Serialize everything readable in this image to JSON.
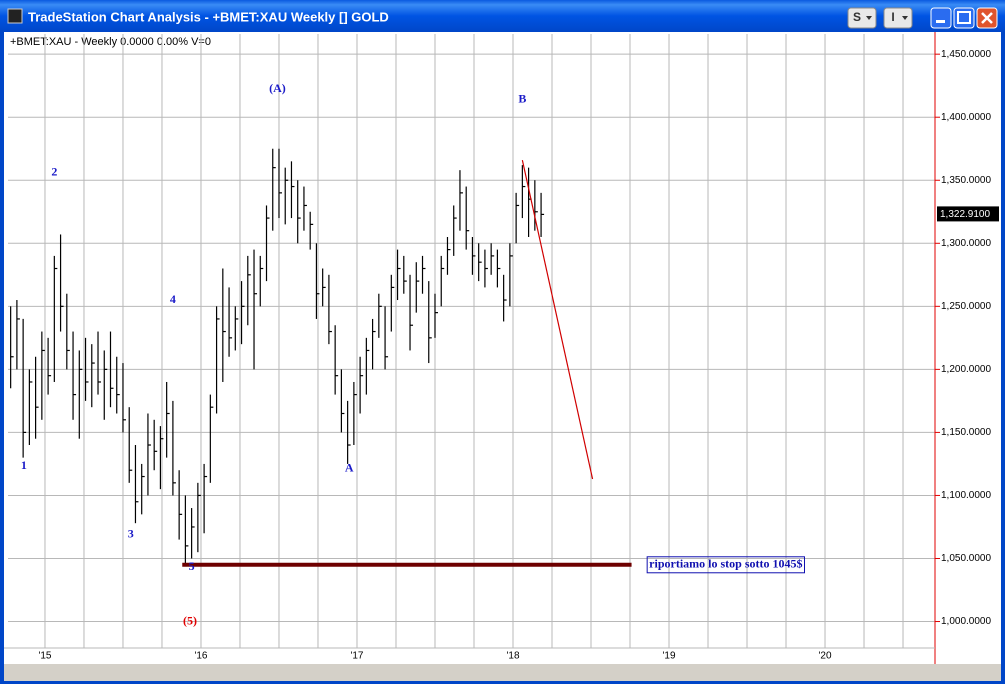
{
  "window": {
    "title": "TradeStation Chart Analysis - +BMET:XAU Weekly [] GOLD",
    "buttons": [
      "S",
      "I"
    ]
  },
  "chart_data": {
    "type": "ohlc",
    "header": "+BMET:XAU - Weekly  0.0000  0.00%  V=0",
    "color": "#000000",
    "grid": true,
    "xlim": [
      2014.763,
      2020.705
    ],
    "xticks": [
      {
        "value": 2015,
        "label": "'15"
      },
      {
        "value": 2016,
        "label": "'16"
      },
      {
        "value": 2017,
        "label": "'17"
      },
      {
        "value": 2018,
        "label": "'18"
      },
      {
        "value": 2019,
        "label": "'19"
      },
      {
        "value": 2020,
        "label": "'20"
      }
    ],
    "xminorticks": [
      2015.25,
      2015.5,
      2015.75,
      2016.25,
      2016.5,
      2016.75,
      2017.25,
      2017.5,
      2017.75,
      2018.25,
      2018.5,
      2018.75,
      2019.25,
      2019.5,
      2019.75,
      2020.25,
      2020.5
    ],
    "ylim": [
      979,
      1466
    ],
    "yticks": [
      {
        "value": 1000,
        "label": "1,000.0000"
      },
      {
        "value": 1050,
        "label": "1,050.0000"
      },
      {
        "value": 1100,
        "label": "1,100.0000"
      },
      {
        "value": 1150,
        "label": "1,150.0000"
      },
      {
        "value": 1200,
        "label": "1,200.0000"
      },
      {
        "value": 1250,
        "label": "1,250.0000"
      },
      {
        "value": 1300,
        "label": "1,300.0000"
      },
      {
        "value": 1350,
        "label": "1,350.0000"
      },
      {
        "value": 1400,
        "label": "1,400.0000"
      },
      {
        "value": 1450,
        "label": "1,450.0000"
      }
    ],
    "last_price": {
      "value": 1322.91,
      "label": "1,322.9100"
    },
    "x": [
      2014.78,
      2014.82,
      2014.86,
      2014.9,
      2014.94,
      2014.98,
      2015.02,
      2015.06,
      2015.1,
      2015.14,
      2015.18,
      2015.22,
      2015.26,
      2015.3,
      2015.34,
      2015.38,
      2015.42,
      2015.46,
      2015.5,
      2015.54,
      2015.58,
      2015.62,
      2015.66,
      2015.7,
      2015.74,
      2015.78,
      2015.82,
      2015.86,
      2015.9,
      2015.94,
      2015.98,
      2016.02,
      2016.06,
      2016.1,
      2016.14,
      2016.18,
      2016.22,
      2016.26,
      2016.3,
      2016.34,
      2016.38,
      2016.42,
      2016.46,
      2016.5,
      2016.54,
      2016.58,
      2016.62,
      2016.66,
      2016.7,
      2016.74,
      2016.78,
      2016.82,
      2016.86,
      2016.9,
      2016.94,
      2016.98,
      2017.02,
      2017.06,
      2017.1,
      2017.14,
      2017.18,
      2017.22,
      2017.26,
      2017.3,
      2017.34,
      2017.38,
      2017.42,
      2017.46,
      2017.5,
      2017.54,
      2017.58,
      2017.62,
      2017.66,
      2017.7,
      2017.74,
      2017.78,
      2017.82,
      2017.86,
      2017.9,
      2017.94,
      2017.98,
      2018.02,
      2018.06,
      2018.1,
      2018.14,
      2018.18
    ],
    "high": [
      1250,
      1255,
      1240,
      1200,
      1210,
      1230,
      1225,
      1290,
      1307,
      1260,
      1230,
      1215,
      1225,
      1220,
      1230,
      1215,
      1230,
      1210,
      1205,
      1170,
      1140,
      1125,
      1165,
      1160,
      1155,
      1190,
      1175,
      1120,
      1100,
      1090,
      1110,
      1125,
      1180,
      1250,
      1280,
      1265,
      1250,
      1270,
      1290,
      1295,
      1290,
      1330,
      1375,
      1375,
      1360,
      1365,
      1350,
      1345,
      1325,
      1300,
      1280,
      1275,
      1235,
      1200,
      1175,
      1190,
      1210,
      1225,
      1240,
      1260,
      1250,
      1275,
      1295,
      1290,
      1275,
      1285,
      1290,
      1270,
      1260,
      1290,
      1305,
      1330,
      1358,
      1345,
      1305,
      1300,
      1295,
      1300,
      1295,
      1275,
      1300,
      1340,
      1362,
      1360,
      1350,
      1340
    ],
    "low": [
      1185,
      1200,
      1130,
      1140,
      1145,
      1160,
      1180,
      1190,
      1230,
      1200,
      1160,
      1145,
      1175,
      1170,
      1180,
      1160,
      1170,
      1165,
      1150,
      1110,
      1078,
      1085,
      1100,
      1120,
      1105,
      1130,
      1100,
      1065,
      1045,
      1050,
      1055,
      1070,
      1110,
      1165,
      1190,
      1210,
      1215,
      1220,
      1235,
      1200,
      1250,
      1270,
      1310,
      1320,
      1315,
      1320,
      1300,
      1310,
      1295,
      1240,
      1250,
      1220,
      1180,
      1150,
      1125,
      1140,
      1165,
      1180,
      1200,
      1225,
      1200,
      1230,
      1255,
      1260,
      1215,
      1245,
      1260,
      1205,
      1225,
      1250,
      1275,
      1290,
      1310,
      1295,
      1275,
      1270,
      1265,
      1275,
      1265,
      1238,
      1250,
      1300,
      1320,
      1305,
      1310,
      1305
    ],
    "close": [
      1210,
      1240,
      1150,
      1190,
      1170,
      1215,
      1195,
      1280,
      1250,
      1215,
      1180,
      1200,
      1190,
      1205,
      1190,
      1200,
      1185,
      1180,
      1160,
      1120,
      1095,
      1115,
      1140,
      1135,
      1145,
      1165,
      1110,
      1085,
      1060,
      1075,
      1100,
      1115,
      1170,
      1240,
      1230,
      1225,
      1240,
      1250,
      1275,
      1260,
      1280,
      1320,
      1360,
      1340,
      1350,
      1345,
      1320,
      1330,
      1315,
      1260,
      1265,
      1230,
      1195,
      1165,
      1140,
      1180,
      1195,
      1215,
      1230,
      1250,
      1210,
      1265,
      1280,
      1270,
      1235,
      1270,
      1280,
      1225,
      1245,
      1280,
      1295,
      1320,
      1340,
      1310,
      1290,
      1285,
      1280,
      1290,
      1280,
      1255,
      1290,
      1330,
      1345,
      1335,
      1325,
      1322.91
    ],
    "annotations": [
      {
        "text": "1",
        "x": 2014.865,
        "y": 1123,
        "color": "#1a1ac8"
      },
      {
        "text": "2",
        "x": 2015.06,
        "y": 1356,
        "color": "#1a1ac8"
      },
      {
        "text": "3",
        "x": 2015.55,
        "y": 1069,
        "color": "#1a1ac8"
      },
      {
        "text": "4",
        "x": 2015.82,
        "y": 1255,
        "color": "#1a1ac8"
      },
      {
        "text": "5",
        "x": 2015.94,
        "y": 1043,
        "color": "#1a1ac8"
      },
      {
        "text": "(5)",
        "x": 2015.93,
        "y": 1000,
        "color": "#e00000"
      },
      {
        "text": "(A)",
        "x": 2016.49,
        "y": 1422,
        "color": "#1a1ac8"
      },
      {
        "text": "A",
        "x": 2016.95,
        "y": 1121,
        "color": "#1a1ac8"
      },
      {
        "text": "B",
        "x": 2018.06,
        "y": 1414,
        "color": "#1a1ac8"
      }
    ],
    "trendline": {
      "x": [
        2018.06,
        2018.51
      ],
      "y": [
        1366,
        1113
      ],
      "color": "#d00000"
    },
    "stop_line": {
      "x": [
        2015.88,
        2018.76
      ],
      "y": [
        1045,
        1045
      ],
      "color": "#6e0000"
    },
    "note": {
      "text": "riportiamo lo stop sotto 1045$",
      "x": 2018.86,
      "y": 1045,
      "color": "#1010b0"
    }
  }
}
